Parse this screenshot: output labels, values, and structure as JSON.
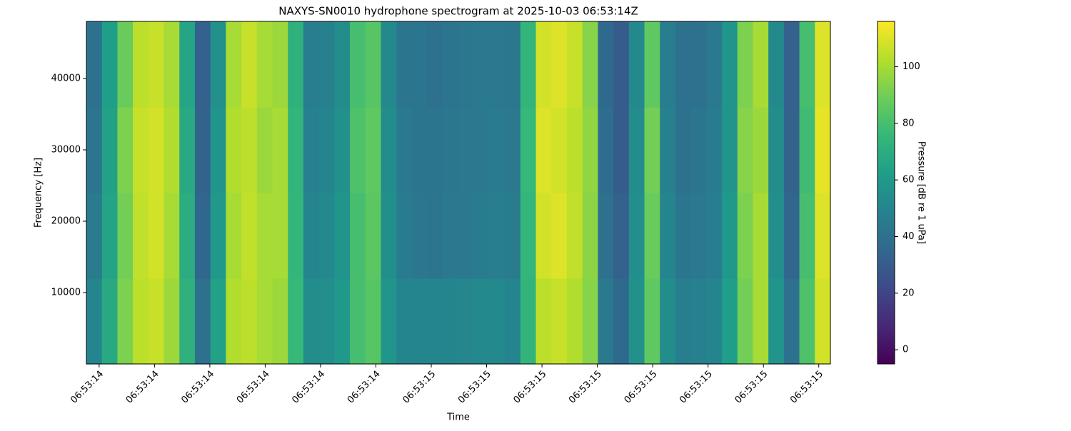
{
  "chart_data": {
    "type": "heatmap",
    "title": "NAXYS-SN0010 hydrophone spectrogram at 2025-10-03 06:53:14Z",
    "xlabel": "Time",
    "ylabel": "Frequency [Hz]",
    "colorbar_label": "Pressure [dB re 1 uPa]",
    "colormap": "viridis",
    "xlim": [
      0.377,
      1.721
    ],
    "xticks": [
      {
        "value": 0.4,
        "label": "06:53:14"
      },
      {
        "value": 0.5,
        "label": "06:53:14"
      },
      {
        "value": 0.6,
        "label": "06:53:14"
      },
      {
        "value": 0.7,
        "label": "06:53:14"
      },
      {
        "value": 0.8,
        "label": "06:53:14"
      },
      {
        "value": 0.9,
        "label": "06:53:14"
      },
      {
        "value": 1.0,
        "label": "06:53:15"
      },
      {
        "value": 1.1,
        "label": "06:53:15"
      },
      {
        "value": 1.2,
        "label": "06:53:15"
      },
      {
        "value": 1.3,
        "label": "06:53:15"
      },
      {
        "value": 1.4,
        "label": "06:53:15"
      },
      {
        "value": 1.5,
        "label": "06:53:15"
      },
      {
        "value": 1.6,
        "label": "06:53:15"
      },
      {
        "value": 1.7,
        "label": "06:53:15"
      }
    ],
    "ylim": [
      0,
      48000
    ],
    "yticks": [
      10000,
      20000,
      30000,
      40000
    ],
    "clim": [
      -5,
      116
    ],
    "cticks": [
      0,
      20,
      40,
      60,
      80,
      100
    ],
    "z": [
      [
        50,
        68,
        92,
        104,
        106,
        98,
        72,
        40,
        64,
        102,
        104,
        100,
        98,
        76,
        54,
        55,
        60,
        80,
        84,
        58,
        50,
        50,
        50,
        50,
        51,
        52,
        52,
        50,
        74,
        104,
        106,
        102,
        94,
        44,
        36,
        56,
        86,
        54,
        46,
        48,
        50,
        62,
        90,
        100,
        58,
        40,
        82,
        108
      ],
      [
        45,
        65,
        90,
        105,
        108,
        100,
        70,
        35,
        60,
        100,
        105,
        100,
        100,
        75,
        50,
        52,
        58,
        80,
        85,
        55,
        45,
        43,
        42,
        44,
        44,
        45,
        46,
        45,
        75,
        108,
        110,
        105,
        95,
        40,
        32,
        55,
        88,
        50,
        42,
        44,
        46,
        60,
        92,
        100,
        55,
        35,
        80,
        110
      ],
      [
        42,
        64,
        92,
        106,
        108,
        102,
        68,
        33,
        58,
        102,
        104,
        98,
        100,
        74,
        48,
        50,
        56,
        82,
        86,
        54,
        44,
        42,
        42,
        43,
        44,
        44,
        45,
        44,
        76,
        110,
        108,
        104,
        96,
        38,
        30,
        54,
        90,
        48,
        40,
        42,
        45,
        58,
        94,
        98,
        54,
        33,
        78,
        112
      ],
      [
        40,
        62,
        88,
        104,
        106,
        100,
        66,
        32,
        56,
        100,
        106,
        100,
        98,
        72,
        46,
        48,
        54,
        80,
        84,
        52,
        42,
        42,
        40,
        42,
        43,
        44,
        44,
        43,
        74,
        108,
        110,
        106,
        94,
        36,
        30,
        52,
        86,
        46,
        40,
        40,
        44,
        58,
        92,
        100,
        52,
        32,
        80,
        110
      ]
    ]
  }
}
